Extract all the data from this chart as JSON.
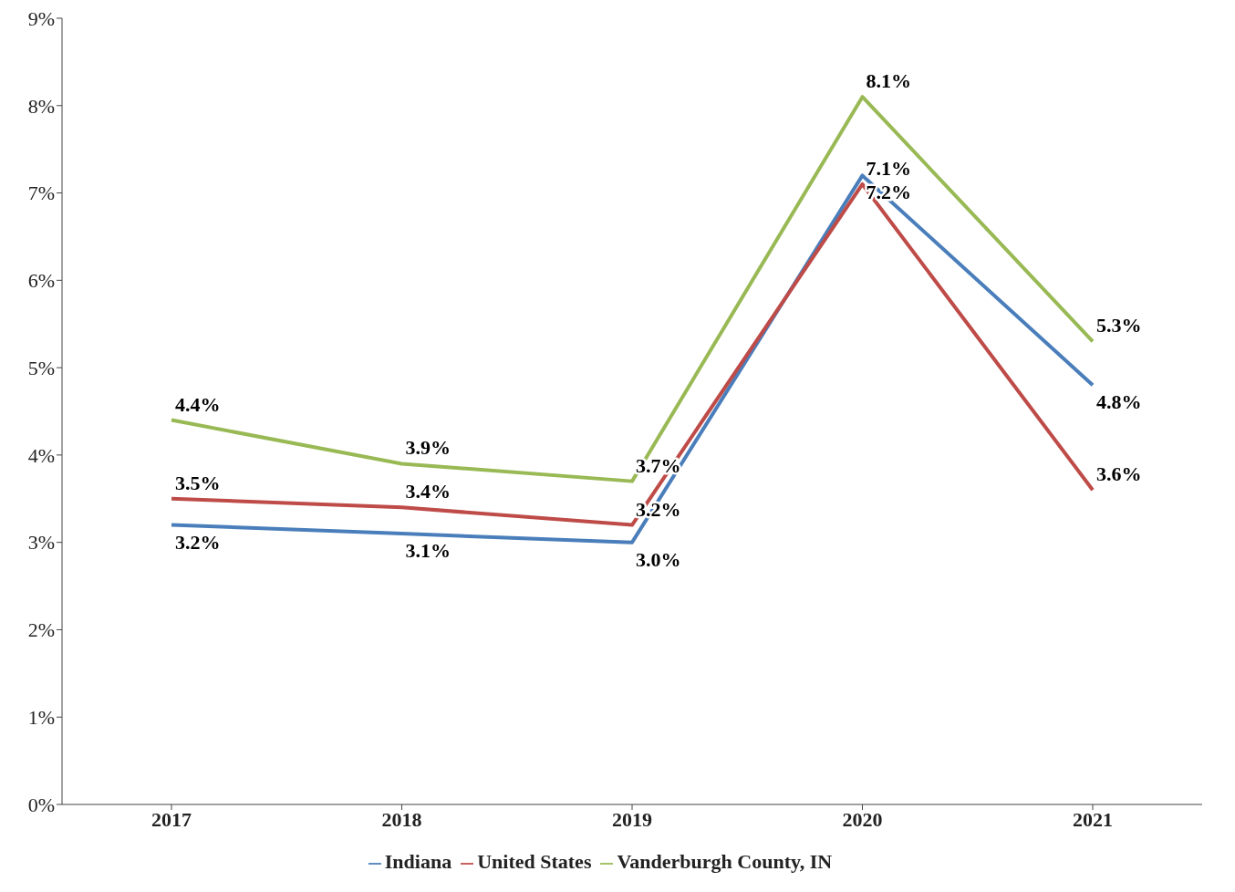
{
  "chart_data": {
    "type": "line",
    "categories": [
      "2017",
      "2018",
      "2019",
      "2020",
      "2021"
    ],
    "series": [
      {
        "name": "Indiana",
        "color": "#4a7ebb",
        "values": [
          3.2,
          3.1,
          3.0,
          7.2,
          4.8
        ],
        "value_labels": [
          "3.2%",
          "3.1%",
          "3.0%",
          "7.2%",
          "4.8%"
        ]
      },
      {
        "name": "United States",
        "color": "#be4b48",
        "values": [
          3.5,
          3.4,
          3.2,
          7.1,
          3.6
        ],
        "value_labels": [
          "3.5%",
          "3.4%",
          "3.2%",
          "7.1%",
          "3.6%"
        ]
      },
      {
        "name": "Vanderburgh County, IN",
        "color": "#98b954",
        "values": [
          4.4,
          3.9,
          3.7,
          8.1,
          5.3
        ],
        "value_labels": [
          "4.4%",
          "3.9%",
          "3.7%",
          "8.1%",
          "5.3%"
        ]
      }
    ],
    "ylim": [
      0,
      9
    ],
    "yticks": [
      {
        "value": 0,
        "label": "0%"
      },
      {
        "value": 1,
        "label": "1%"
      },
      {
        "value": 2,
        "label": "2%"
      },
      {
        "value": 3,
        "label": "3%"
      },
      {
        "value": 4,
        "label": "4%"
      },
      {
        "value": 5,
        "label": "5%"
      },
      {
        "value": 6,
        "label": "6%"
      },
      {
        "value": 7,
        "label": "7%"
      },
      {
        "value": 8,
        "label": "8%"
      },
      {
        "value": 9,
        "label": "9%"
      }
    ],
    "grid": false,
    "legend": "bottom",
    "marker": "none",
    "line_style": "solid"
  }
}
